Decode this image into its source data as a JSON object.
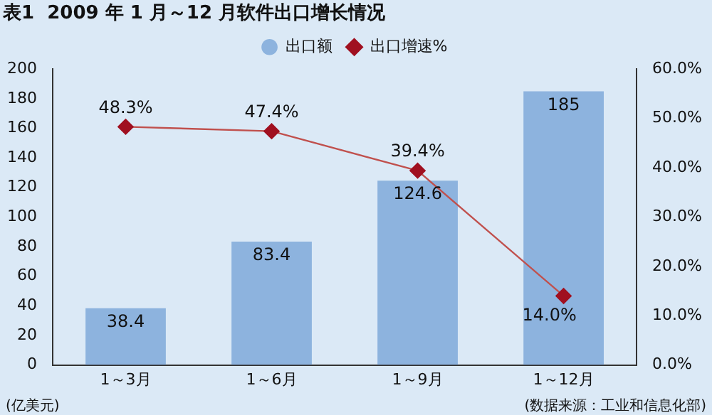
{
  "chart_data": {
    "type": "bar",
    "title": "表1  2009 年 1 月～12 月软件出口增长情况",
    "ylabel": "(亿美元)",
    "annotations": [
      "(数据来源：工业和信息化部)"
    ],
    "categories": [
      "1～3月",
      "1～6月",
      "1～9月",
      "1～12月"
    ],
    "series": [
      {
        "name": "出口额",
        "color": "#8db3de",
        "values": [
          38.4,
          83.4,
          124.6,
          185
        ],
        "value_labels": [
          "38.4",
          "83.4",
          "124.6",
          "185"
        ]
      },
      {
        "name": "出口增速%",
        "type": "line",
        "axis": "y2",
        "color": "#c0504d",
        "values": [
          48.3,
          47.4,
          39.4,
          14.0
        ],
        "value_labels": [
          "48.3%",
          "47.4%",
          "39.4%",
          "14.0%"
        ]
      }
    ],
    "ylim": [
      0,
      200
    ],
    "yticks": [
      0,
      20,
      40,
      60,
      80,
      100,
      120,
      140,
      160,
      180,
      200
    ],
    "y2lim": [
      0,
      60
    ],
    "y2ticks": [
      {
        "value": 0,
        "label": "0.0%"
      },
      {
        "value": 10,
        "label": "10.0%"
      },
      {
        "value": 20,
        "label": "20.0%"
      },
      {
        "value": 30,
        "label": "30.0%"
      },
      {
        "value": 40,
        "label": "40.0%"
      },
      {
        "value": 50,
        "label": "50.0%"
      },
      {
        "value": 60,
        "label": "60.0%"
      }
    ],
    "grid": false,
    "legend": "top",
    "marker": "diamond",
    "line_style": "solid"
  }
}
